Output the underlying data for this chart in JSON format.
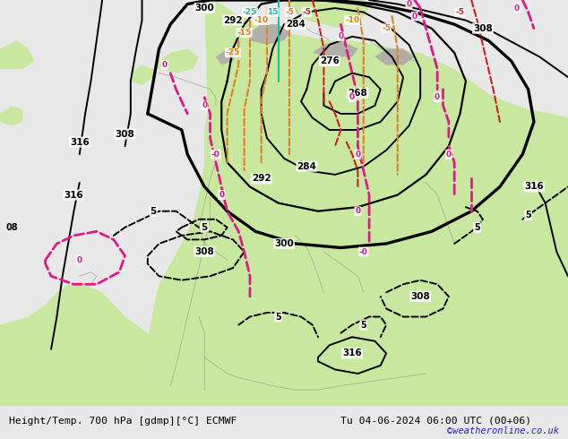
{
  "title_left": "Height/Temp. 700 hPa [gdmp][°C] ECMWF",
  "title_right": "Tu 04-06-2024 06:00 UTC (00+06)",
  "watermark": "©weatheronline.co.uk",
  "sea_color": "#e8e8e8",
  "land_green": "#c8e8a0",
  "land_gray": "#b0b0a8",
  "footer_bg": "#d8d8d8",
  "black": "#000000",
  "orange": "#e08020",
  "red": "#cc2020",
  "magenta": "#e0188a",
  "cyan": "#18c0a0",
  "gray_coast": "#a0a090",
  "watermark_color": "#2020cc",
  "figsize": [
    6.34,
    4.9
  ],
  "dpi": 100
}
